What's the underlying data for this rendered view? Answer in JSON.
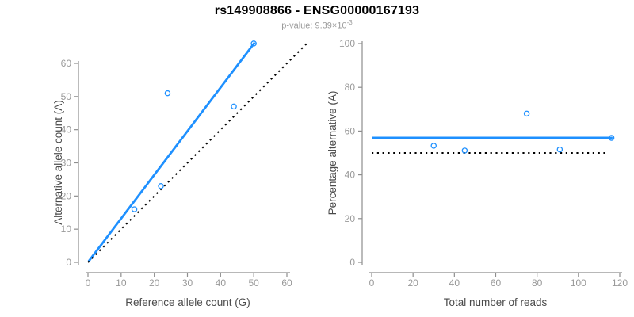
{
  "header": {
    "title": "rs149908866 - ENSG00000167193",
    "pvalue_base": "p-value: 9.39×10",
    "pvalue_exponent": "-3"
  },
  "styles": {
    "accent_blue": "#1E90FF",
    "identity_black": "#000000",
    "axis_gray": "#8e8e8e",
    "tick_label_gray": "#999999",
    "axis_title_gray": "#4a4a4a",
    "subtitle_gray": "#9b9b9b"
  },
  "chart_data": [
    {
      "type": "scatter",
      "name": "allele-counts-scatter",
      "xlabel": "Reference allele count (G)",
      "ylabel": "Alternative allele count (A)",
      "xlim": [
        0,
        66
      ],
      "ylim": [
        0,
        66
      ],
      "xticks": [
        0,
        10,
        20,
        30,
        40,
        50,
        60
      ],
      "yticks": [
        0,
        10,
        20,
        30,
        40,
        50,
        60
      ],
      "grid": false,
      "legend": "none",
      "points": [
        [
          14,
          16
        ],
        [
          22,
          23
        ],
        [
          24,
          51
        ],
        [
          44,
          47
        ],
        [
          50,
          66
        ]
      ],
      "lines": [
        {
          "role": "fit-line",
          "x": [
            0.2,
            50.3
          ],
          "y": [
            0.3,
            66.3
          ],
          "color": "#1E90FF",
          "dash": "solid",
          "width": 2.8
        },
        {
          "role": "identity-line",
          "x": [
            0,
            66
          ],
          "y": [
            0,
            66
          ],
          "color": "#000000",
          "dash": "dotted",
          "width": 2
        }
      ]
    },
    {
      "type": "scatter",
      "name": "percentage-vs-coverage-scatter",
      "xlabel": "Total number of reads",
      "ylabel": "Percentage alternative (A)",
      "xlim": [
        0,
        120
      ],
      "ylim": [
        0,
        100
      ],
      "xticks": [
        0,
        20,
        40,
        60,
        80,
        100,
        120
      ],
      "yticks": [
        0,
        20,
        40,
        60,
        80,
        100
      ],
      "grid": false,
      "legend": "none",
      "points": [
        [
          30,
          53.3
        ],
        [
          45,
          51.1
        ],
        [
          75,
          68
        ],
        [
          91,
          51.6
        ],
        [
          116,
          56.9
        ]
      ],
      "lines": [
        {
          "role": "fit-line",
          "x": [
            0,
            116.5
          ],
          "y": [
            56.9,
            56.9
          ],
          "color": "#1E90FF",
          "dash": "solid",
          "width": 2.8
        },
        {
          "role": "null-line",
          "x": [
            0,
            115
          ],
          "y": [
            50,
            50
          ],
          "color": "#000000",
          "dash": "dotted",
          "width": 2
        }
      ]
    }
  ]
}
